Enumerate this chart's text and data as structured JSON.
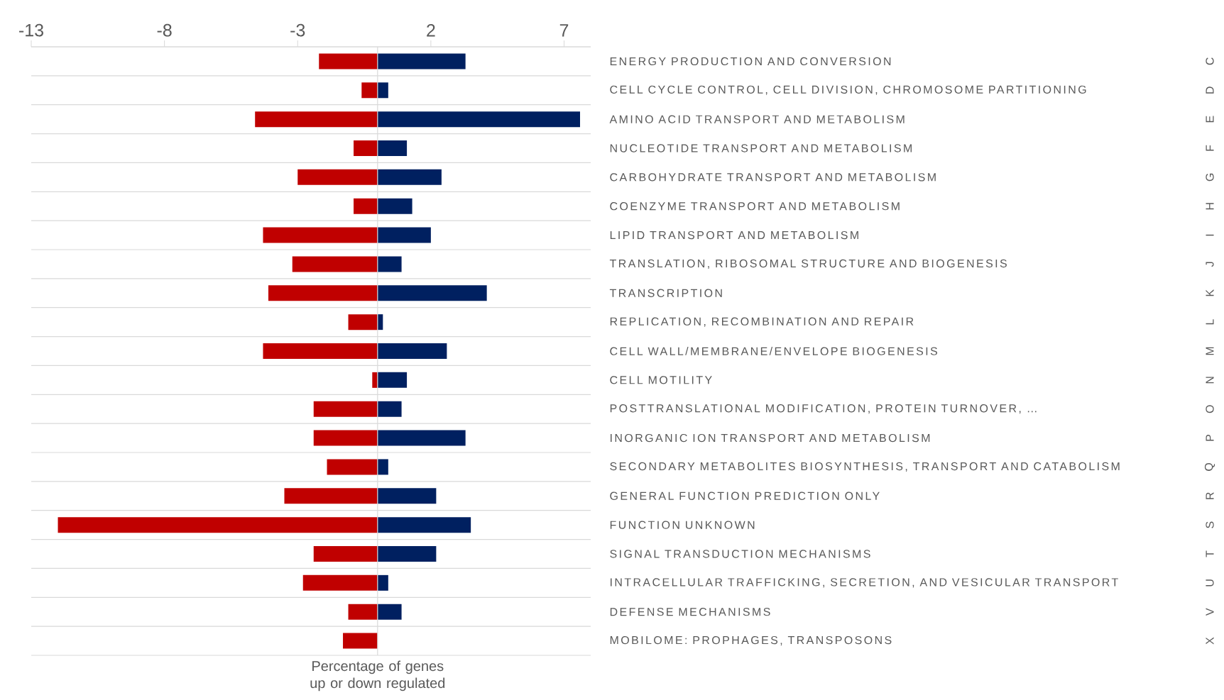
{
  "chart_data": {
    "type": "bar",
    "orientation": "horizontal",
    "stacked": true,
    "categories": [
      "ENERGY PRODUCTION AND CONVERSION",
      "CELL CYCLE CONTROL, CELL DIVISION, CHROMOSOME PARTITIONING",
      "AMINO ACID TRANSPORT AND METABOLISM",
      "NUCLEOTIDE TRANSPORT AND METABOLISM",
      "CARBOHYDRATE TRANSPORT AND METABOLISM",
      "COENZYME TRANSPORT AND METABOLISM",
      "LIPID TRANSPORT AND METABOLISM",
      "TRANSLATION, RIBOSOMAL STRUCTURE AND BIOGENESIS",
      "TRANSCRIPTION",
      "REPLICATION, RECOMBINATION AND REPAIR",
      "CELL WALL/MEMBRANE/ENVELOPE BIOGENESIS",
      "CELL MOTILITY",
      "POSTTRANSLATIONAL MODIFICATION, PROTEIN TURNOVER, …",
      "INORGANIC ION TRANSPORT AND METABOLISM",
      "SECONDARY METABOLITES BIOSYNTHESIS, TRANSPORT AND CATABOLISM",
      "GENERAL FUNCTION PREDICTION ONLY",
      "FUNCTION UNKNOWN",
      "SIGNAL TRANSDUCTION MECHANISMS",
      "INTRACELLULAR TRAFFICKING, SECRETION, AND VESICULAR TRANSPORT",
      "DEFENSE MECHANISMS",
      "MOBILOME: PROPHAGES, TRANSPOSONS"
    ],
    "series": [
      {
        "color": "#c00000",
        "values": [
          -2.2,
          -0.6,
          -4.6,
          -0.9,
          -3.0,
          -0.9,
          -4.3,
          -3.2,
          -4.1,
          -1.1,
          -4.3,
          -0.2,
          -2.4,
          -2.4,
          -1.9,
          -3.5,
          -12.0,
          -2.4,
          -2.8,
          -1.1,
          -1.3
        ]
      },
      {
        "color": "#002060",
        "values": [
          3.3,
          0.4,
          7.6,
          1.1,
          2.4,
          1.3,
          2.0,
          0.9,
          4.1,
          0.2,
          2.6,
          1.1,
          0.9,
          3.3,
          0.4,
          2.2,
          3.5,
          2.2,
          0.4,
          0.9,
          null
        ]
      }
    ],
    "xlabel": "Percentage of genes up or down regulated",
    "xlim": [
      -13,
      8
    ],
    "xticks": [
      -13,
      -8,
      -3,
      2,
      7
    ],
    "grid": "y",
    "annotations": [
      "C",
      "D",
      "E",
      "F",
      "G",
      "H",
      "I",
      "J",
      "K",
      "L",
      "M",
      "N",
      "O",
      "P",
      "Q",
      "R",
      "S",
      "T",
      "U",
      "V",
      "X"
    ]
  }
}
